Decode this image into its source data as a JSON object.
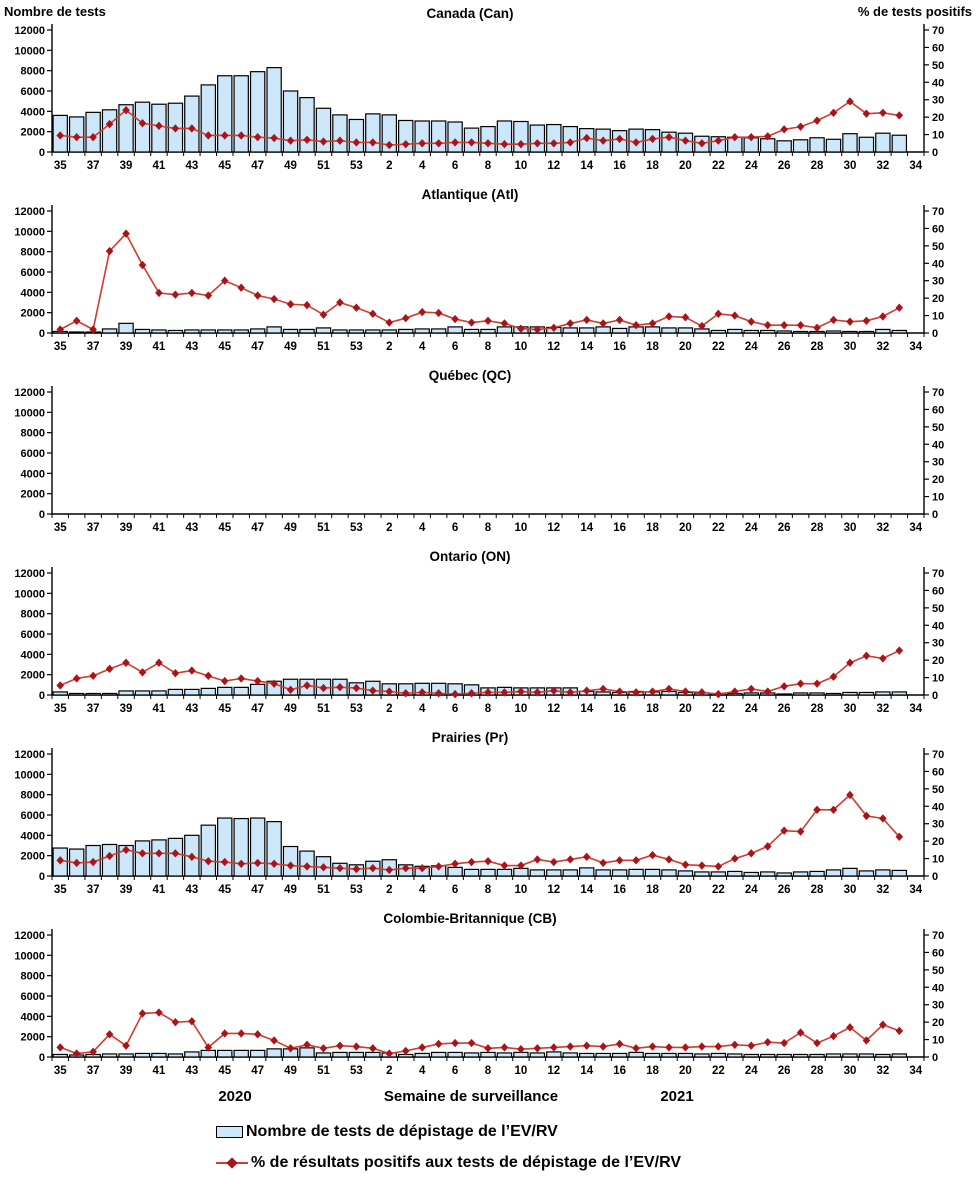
{
  "headers": {
    "left_axis_title": "Nombre de tests",
    "right_axis_title": "% de tests positifs"
  },
  "footer": {
    "year_left": "2020",
    "axis_title": "Semaine de surveillance",
    "year_right": "2021",
    "legend": [
      {
        "type": "bar",
        "label": "Nombre de tests de dépistage de l’EV/RV"
      },
      {
        "type": "line",
        "label": "% de résultats positifs aux tests de dépistage de l’EV/RV"
      }
    ]
  },
  "chart_data": {
    "type": "combo-bar-line-small-multiples",
    "x_axis_title": "Semaine de surveillance",
    "categories": [
      "35",
      "36",
      "37",
      "38",
      "39",
      "40",
      "41",
      "42",
      "43",
      "44",
      "45",
      "46",
      "47",
      "48",
      "49",
      "50",
      "51",
      "52",
      "53",
      "1",
      "2",
      "3",
      "4",
      "5",
      "6",
      "7",
      "8",
      "9",
      "10",
      "11",
      "12",
      "13",
      "14",
      "15",
      "16",
      "17",
      "18",
      "19",
      "20",
      "21",
      "22",
      "23",
      "24",
      "25",
      "26",
      "27",
      "28",
      "29",
      "30",
      "31",
      "32",
      "33",
      "34"
    ],
    "x_label_rule": "every_other_starting_at_35",
    "left_axis": {
      "label": "Nombre de tests",
      "min": 0,
      "max": 12000,
      "step": 2000
    },
    "right_axis": {
      "label": "% de tests positifs",
      "min": 0,
      "max": 70,
      "step": 10
    },
    "colors": {
      "bar_fill": "#cde7fa",
      "bar_stroke": "#000000",
      "line": "#d03c30",
      "marker": "#aa1419"
    },
    "panels": [
      {
        "title": "Canada (Can)",
        "tests": [
          3600,
          3450,
          3900,
          4150,
          4650,
          4900,
          4700,
          4800,
          5500,
          6600,
          7500,
          7500,
          7900,
          8300,
          6000,
          5350,
          4300,
          3650,
          3200,
          3750,
          3650,
          3100,
          3050,
          3050,
          2950,
          2350,
          2500,
          3050,
          3000,
          2650,
          2700,
          2500,
          2300,
          2250,
          2100,
          2250,
          2200,
          1950,
          1850,
          1550,
          1500,
          1450,
          1400,
          1300,
          1100,
          1200,
          1400,
          1250,
          1800,
          1450,
          1850,
          1650,
          null
        ],
        "pct_positive": [
          9.5,
          8.5,
          8.5,
          16,
          24,
          16.5,
          15,
          13.5,
          13.5,
          9.5,
          9.5,
          9.5,
          8.5,
          8,
          6.5,
          7,
          6,
          6.5,
          5.5,
          5.5,
          4,
          4.5,
          5,
          5,
          5.5,
          5.5,
          5,
          4.5,
          4.5,
          5,
          5,
          5.5,
          8,
          6.5,
          7.5,
          5.5,
          7.5,
          8.5,
          6.5,
          5,
          6.5,
          8.5,
          8.5,
          9,
          13,
          14.5,
          18,
          22.5,
          29,
          22,
          22.5,
          21,
          null
        ]
      },
      {
        "title": "Atlantique (Atl)",
        "tests": [
          150,
          100,
          100,
          400,
          950,
          350,
          300,
          250,
          300,
          300,
          300,
          300,
          400,
          600,
          350,
          350,
          500,
          300,
          300,
          300,
          300,
          350,
          400,
          400,
          600,
          350,
          350,
          600,
          600,
          600,
          550,
          500,
          500,
          600,
          450,
          600,
          600,
          500,
          500,
          400,
          250,
          350,
          250,
          250,
          200,
          150,
          150,
          200,
          150,
          150,
          350,
          250,
          null
        ],
        "pct_positive": [
          2,
          7,
          2,
          47,
          57,
          39,
          23,
          22,
          23,
          21.5,
          30,
          26,
          21.5,
          19.5,
          16.5,
          16,
          10.5,
          17.5,
          14.5,
          11,
          6,
          8.5,
          12,
          11.5,
          8,
          6,
          7,
          5.5,
          2.5,
          2,
          3,
          5.5,
          7.5,
          5.5,
          7.5,
          4.5,
          5.5,
          9.5,
          9,
          4,
          11,
          10,
          6.5,
          4.5,
          4.5,
          4.5,
          3,
          7.5,
          6.5,
          7,
          9.5,
          14.5,
          null
        ]
      },
      {
        "title": "Québec (QC)",
        "no_data": true,
        "tests": [],
        "pct_positive": []
      },
      {
        "title": "Ontario (ON)",
        "tests": [
          300,
          150,
          150,
          150,
          400,
          400,
          400,
          550,
          550,
          650,
          750,
          750,
          1050,
          1350,
          1550,
          1550,
          1550,
          1550,
          1200,
          1350,
          1100,
          1100,
          1150,
          1150,
          1100,
          1000,
          700,
          750,
          700,
          700,
          700,
          700,
          350,
          300,
          250,
          350,
          300,
          350,
          250,
          200,
          150,
          150,
          200,
          200,
          100,
          200,
          200,
          150,
          250,
          250,
          300,
          300,
          null
        ],
        "pct_positive": [
          5.5,
          9.5,
          11,
          15,
          18.5,
          13,
          18.5,
          12.5,
          14,
          11,
          8,
          9.5,
          8,
          6.5,
          3,
          5.5,
          4,
          4.5,
          4,
          2.5,
          2,
          1,
          1.5,
          1,
          0.5,
          1,
          1.5,
          1.5,
          2,
          1.5,
          2.5,
          1.5,
          2.5,
          3.5,
          2,
          1.5,
          2,
          3.5,
          2,
          1.5,
          0.5,
          2,
          3.5,
          2,
          5,
          6.5,
          6.5,
          10.5,
          18.5,
          22.5,
          21,
          25.5,
          null
        ]
      },
      {
        "title": "Prairies (Pr)",
        "tests": [
          2750,
          2650,
          3000,
          3100,
          3000,
          3450,
          3550,
          3700,
          4000,
          5000,
          5700,
          5650,
          5700,
          5350,
          2900,
          2450,
          1900,
          1250,
          1100,
          1450,
          1600,
          1100,
          950,
          1000,
          850,
          650,
          650,
          650,
          750,
          600,
          600,
          600,
          800,
          600,
          600,
          650,
          650,
          600,
          500,
          400,
          400,
          450,
          350,
          400,
          300,
          400,
          450,
          600,
          750,
          500,
          600,
          550,
          null
        ],
        "pct_positive": [
          9,
          7.5,
          8,
          11.5,
          15,
          13,
          13,
          13,
          11,
          8.5,
          8,
          7,
          7.5,
          7,
          6,
          5.5,
          5,
          4.5,
          4,
          4.5,
          3.5,
          4.5,
          4.5,
          5.5,
          7,
          8,
          8.5,
          6,
          6,
          9.5,
          8,
          9.5,
          11,
          7.5,
          9,
          9,
          12,
          9.5,
          6.5,
          6,
          5.5,
          10,
          13,
          17,
          26,
          25.5,
          38,
          38,
          46.5,
          34.5,
          33,
          22.5,
          null
        ]
      },
      {
        "title": "Colombie-Britannique (CB)",
        "tests": [
          250,
          200,
          250,
          300,
          300,
          350,
          350,
          300,
          500,
          650,
          650,
          650,
          650,
          800,
          800,
          900,
          400,
          450,
          450,
          450,
          400,
          250,
          350,
          450,
          450,
          400,
          450,
          400,
          450,
          400,
          500,
          400,
          350,
          350,
          350,
          450,
          350,
          350,
          350,
          300,
          350,
          300,
          250,
          250,
          250,
          250,
          250,
          300,
          300,
          300,
          250,
          300,
          null
        ],
        "pct_positive": [
          5.5,
          2,
          3,
          13,
          6.5,
          25,
          25.5,
          20,
          20.5,
          5.5,
          13.5,
          13.5,
          13,
          9.5,
          5,
          7,
          5,
          6.5,
          6,
          5,
          2,
          3.5,
          5.5,
          7.5,
          8,
          8,
          5,
          5.5,
          4.5,
          5,
          5.5,
          6,
          6.5,
          6,
          7.5,
          5,
          6,
          5.5,
          5.5,
          6,
          6,
          7,
          6.5,
          8.5,
          8,
          14,
          8,
          12,
          17,
          9.5,
          18.5,
          15,
          null
        ]
      }
    ]
  }
}
